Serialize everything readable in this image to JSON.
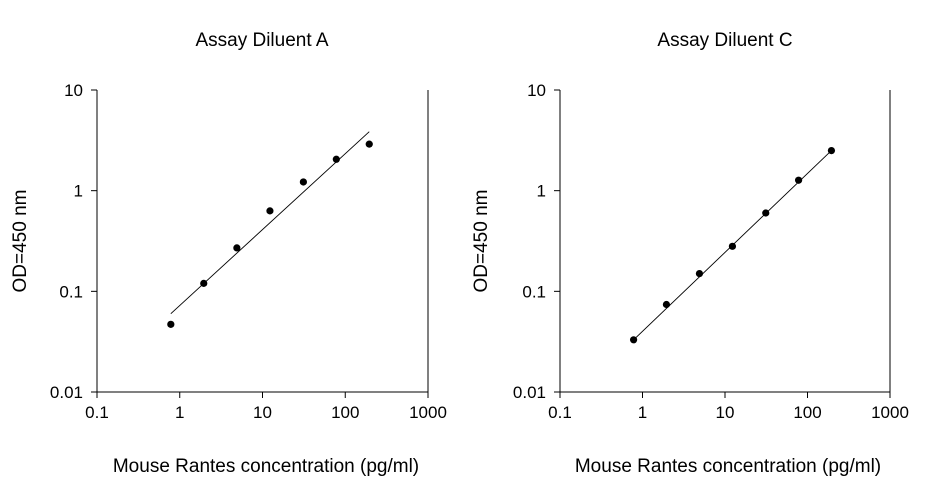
{
  "chart_data": [
    {
      "type": "scatter",
      "title": "Assay Diluent A",
      "xlabel": "Mouse Rantes concentration (pg/ml)",
      "ylabel": "OD=450 nm",
      "xscale": "log",
      "yscale": "log",
      "xlim": [
        0.1,
        1000
      ],
      "ylim": [
        0.01,
        10
      ],
      "xticks": [
        "0.1",
        "1",
        "10",
        "100",
        "1000"
      ],
      "yticks": [
        "0.01",
        "0.1",
        "1",
        "10"
      ],
      "grid": false,
      "colors": {
        "points": "#000000",
        "line": "#000000"
      },
      "series": [
        {
          "x": [
            0.78,
            1.95,
            4.9,
            12.3,
            31.2,
            78,
            195
          ],
          "y": [
            0.047,
            0.12,
            0.27,
            0.63,
            1.22,
            2.05,
            2.9
          ]
        }
      ],
      "fit": {
        "x": [
          0.78,
          195
        ],
        "y": [
          0.06,
          3.85
        ]
      }
    },
    {
      "type": "scatter",
      "title": "Assay Diluent C",
      "xlabel": "Mouse Rantes concentration (pg/ml)",
      "ylabel": "OD=450 nm",
      "xscale": "log",
      "yscale": "log",
      "xlim": [
        0.1,
        1000
      ],
      "ylim": [
        0.01,
        10
      ],
      "xticks": [
        "0.1",
        "1",
        "10",
        "100",
        "1000"
      ],
      "yticks": [
        "0.01",
        "0.1",
        "1",
        "10"
      ],
      "grid": false,
      "colors": {
        "points": "#000000",
        "line": "#000000"
      },
      "series": [
        {
          "x": [
            0.78,
            1.95,
            4.9,
            12.3,
            31.2,
            78,
            195
          ],
          "y": [
            0.033,
            0.074,
            0.15,
            0.28,
            0.6,
            1.27,
            2.5
          ]
        }
      ],
      "fit": {
        "x": [
          0.78,
          195
        ],
        "y": [
          0.033,
          2.5
        ]
      }
    }
  ]
}
